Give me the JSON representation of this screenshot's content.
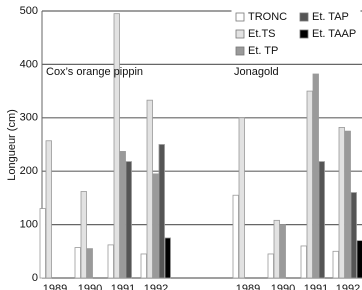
{
  "chart_data": {
    "type": "bar",
    "y_label": "Longueur (cm)",
    "annotations": [
      "Cox’s orange pippin",
      "Jonagold"
    ],
    "categories": [
      "1989",
      "1990",
      "1991",
      "1992",
      "1989",
      "1990",
      "1991",
      "1992"
    ],
    "series": [
      {
        "name": "TRONC",
        "color": "#ffffff",
        "values": [
          130,
          57,
          62,
          45,
          155,
          45,
          60,
          50
        ]
      },
      {
        "name": "Et.TS",
        "color": "#e2e2e2",
        "values": [
          257,
          162,
          495,
          333,
          300,
          108,
          350,
          282
        ]
      },
      {
        "name": "Et. TP",
        "color": "#9a9a9a",
        "values": [
          null,
          55,
          237,
          195,
          null,
          100,
          382,
          275
        ]
      },
      {
        "name": "Et. TAP",
        "color": "#555555",
        "values": [
          null,
          null,
          218,
          250,
          null,
          null,
          218,
          160
        ]
      },
      {
        "name": "Et. TAAP",
        "color": "#000000",
        "values": [
          null,
          null,
          null,
          75,
          null,
          null,
          null,
          70
        ]
      }
    ],
    "ylim": [
      0,
      500
    ],
    "yticks": [
      0,
      100,
      200,
      300,
      400,
      500
    ],
    "grid": true,
    "legend": "top-right"
  }
}
